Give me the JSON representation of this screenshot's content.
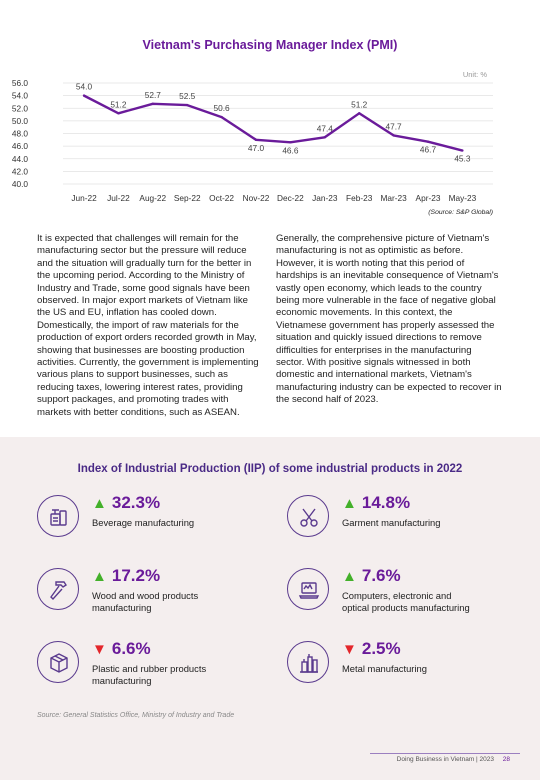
{
  "chart_data": {
    "type": "line",
    "title": "Vietnam's Purchasing Manager Index (PMI)",
    "unit": "Unit: %",
    "source": "(Source: S&P Global)",
    "categories": [
      "Jun-22",
      "Jul-22",
      "Aug-22",
      "Sep-22",
      "Oct-22",
      "Nov-22",
      "Dec-22",
      "Jan-23",
      "Feb-23",
      "Mar-23",
      "Apr-23",
      "May-23"
    ],
    "values": [
      54.0,
      51.2,
      52.7,
      52.5,
      50.6,
      47.0,
      46.6,
      47.4,
      51.2,
      47.7,
      46.7,
      45.3
    ],
    "value_labels": [
      "54.0",
      "51.2",
      "52.7",
      "52.5",
      "50.6",
      "47.0",
      "46.6",
      "47.4",
      "51.2",
      "47.7",
      "46.7",
      "45.3"
    ],
    "y_ticks": [
      "56.0",
      "54.0",
      "52.0",
      "50.0",
      "48.0",
      "46.0",
      "44.0",
      "42.0",
      "40.0"
    ],
    "ylim": [
      40,
      56
    ],
    "grid": true,
    "line_color": "#6a1b9a"
  },
  "text": {
    "left": "It is expected that challenges will remain for the manufacturing sector but the pressure will reduce and the situation will gradually turn for the better in the upcoming period. According to the Ministry of Industry and Trade, some good signals have been observed. In major export markets of Vietnam like the US and EU, inflation has cooled down. Domestically, the import of raw materials for the production of export orders recorded growth in May, showing that businesses are boosting production activities. Currently, the government is implementing various plans to support businesses, such as reducing taxes, lowering interest rates, providing support packages, and promoting trades with markets with better conditions, such as ASEAN.",
    "right": "Generally, the comprehensive picture of Vietnam's manufacturing is not as optimistic as before. However, it is worth noting that this period of hardships is an inevitable consequence of Vietnam's vastly open economy, which leads to the country being more vulnerable in the face of negative global economic movements. In this context, the Vietnamese government has properly assessed the situation and quickly issued directions to remove difficulties for enterprises in the manufacturing sector. With positive signals witnessed in both domestic and international markets, Vietnam's manufacturing industry can be expected to recover in the second half of 2023."
  },
  "iip": {
    "title": "Index of Industrial Production (IIP) of some industrial products in 2022",
    "source": "Source: General Statistics Office, Ministry of Industry and Trade",
    "items": [
      {
        "value": "32.3%",
        "direction": "up",
        "label": "Beverage manufacturing",
        "icon": "beverage-icon"
      },
      {
        "value": "14.8%",
        "direction": "up",
        "label": "Garment manufacturing",
        "icon": "scissors-icon"
      },
      {
        "value": "17.2%",
        "direction": "up",
        "label": "Wood and wood products manufacturing",
        "icon": "hammer-icon"
      },
      {
        "value": "7.6%",
        "direction": "up",
        "label": "Computers, electronic and optical products manufacturing",
        "icon": "laptop-icon"
      },
      {
        "value": "6.6%",
        "direction": "down",
        "label": "Plastic and rubber products manufacturing",
        "icon": "cube-icon"
      },
      {
        "value": "2.5%",
        "direction": "down",
        "label": "Metal manufacturing",
        "icon": "factory-icon"
      }
    ],
    "up_color": "#43b02a",
    "down_color": "#e3262b"
  },
  "footer": {
    "text": "Doing Business in Vietnam | 2023",
    "page": "28"
  }
}
